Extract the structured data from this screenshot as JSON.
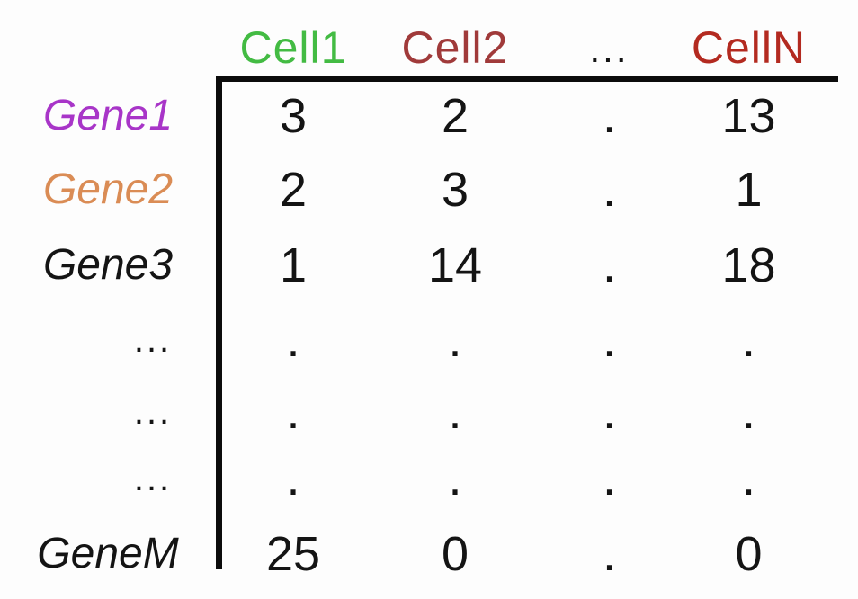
{
  "colors": {
    "line": "#0c0c0c",
    "background": "#fdfdfd",
    "data_text": "#141414",
    "cell1_green": "#43bb43",
    "cell2_darkred": "#a03a3a",
    "cellN_red": "#b32a20",
    "gene1_purple": "#a835c8",
    "gene2_orange": "#da8c55",
    "gene3_black": "#141414",
    "geneM_black": "#141414"
  },
  "matrix": {
    "columns": [
      {
        "label": "Cell1",
        "color": "#43bb43"
      },
      {
        "label": "Cell2",
        "color": "#a03a3a"
      },
      {
        "label": "...",
        "color": "#141414"
      },
      {
        "label": "CellN",
        "color": "#b32a20"
      }
    ],
    "rows": [
      {
        "gene": "Gene1",
        "color": "#a835c8",
        "values": [
          "3",
          "2",
          ".",
          "13"
        ]
      },
      {
        "gene": "Gene2",
        "color": "#da8c55",
        "values": [
          "2",
          "3",
          ".",
          "1"
        ]
      },
      {
        "gene": "Gene3",
        "color": "#141414",
        "values": [
          "1",
          "14",
          ".",
          "18"
        ]
      },
      {
        "gene": "...",
        "color": "#141414",
        "values": [
          ".",
          ".",
          ".",
          "."
        ]
      },
      {
        "gene": "...",
        "color": "#141414",
        "values": [
          ".",
          ".",
          ".",
          "."
        ]
      },
      {
        "gene": "...",
        "color": "#141414",
        "values": [
          ".",
          ".",
          ".",
          "."
        ]
      },
      {
        "gene": "GeneM",
        "color": "#141414",
        "values": [
          "25",
          "0",
          ".",
          "0"
        ]
      }
    ]
  }
}
